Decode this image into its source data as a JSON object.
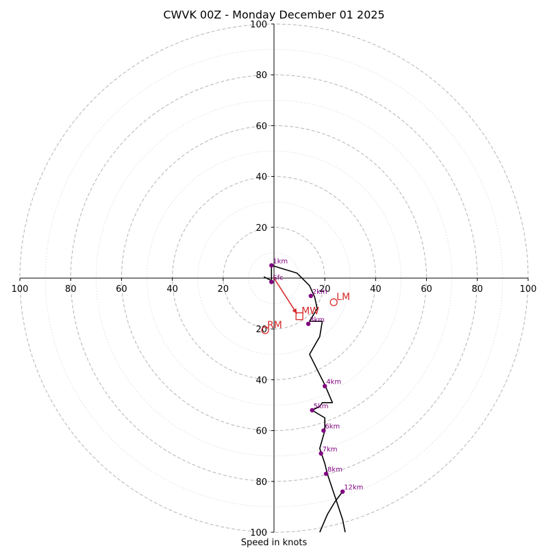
{
  "chart_data": {
    "type": "hodograph",
    "title": "CWVK 00Z - Monday December 01 2025",
    "xlabel": "Speed in knots",
    "units": "knots",
    "range": [
      -100,
      100
    ],
    "major_rings": [
      20,
      40,
      60,
      80,
      100
    ],
    "minor_rings": [
      10,
      30,
      50,
      70,
      90
    ],
    "x_tick_labels": [
      "100",
      "80",
      "60",
      "40",
      "20",
      "20",
      "40",
      "60",
      "80",
      "100"
    ],
    "x_tick_values": [
      -100,
      -80,
      -60,
      -40,
      -20,
      20,
      40,
      60,
      80,
      100
    ],
    "y_tick_labels": [
      "100",
      "80",
      "60",
      "40",
      "20",
      "20",
      "40",
      "60",
      "80",
      "100"
    ],
    "y_tick_values": [
      100,
      80,
      60,
      40,
      20,
      -20,
      -40,
      -60,
      -80,
      -100
    ],
    "profile": [
      [
        -4,
        0.5
      ],
      [
        -1,
        -1
      ],
      [
        -1,
        5
      ],
      [
        9,
        2
      ],
      [
        14,
        -3
      ],
      [
        16,
        -7.5
      ],
      [
        17,
        -12
      ],
      [
        14,
        -17
      ],
      [
        19,
        -17
      ],
      [
        18,
        -23
      ],
      [
        14,
        -30
      ],
      [
        20,
        -42
      ],
      [
        23,
        -49
      ],
      [
        19,
        -49
      ],
      [
        18,
        -50.5
      ],
      [
        15,
        -52
      ],
      [
        20,
        -55
      ],
      [
        20,
        -60
      ],
      [
        18,
        -67
      ],
      [
        19,
        -70
      ],
      [
        20,
        -73
      ],
      [
        21,
        -77
      ],
      [
        23,
        -83
      ],
      [
        25,
        -89
      ],
      [
        27,
        -95
      ],
      [
        28,
        -100
      ]
    ],
    "profile_upper": [
      [
        27,
        -84
      ],
      [
        24,
        -88
      ],
      [
        21,
        -93
      ],
      [
        18,
        -100
      ]
    ],
    "height_markers": [
      {
        "label": "Sfc",
        "u": -1,
        "v": -1.5
      },
      {
        "label": "1km",
        "u": -1,
        "v": 5
      },
      {
        "label": "2km",
        "u": 14.5,
        "v": -7
      },
      {
        "label": "3km",
        "u": 13.5,
        "v": -18
      },
      {
        "label": "4km",
        "u": 20,
        "v": -42.5
      },
      {
        "label": "5km",
        "u": 15,
        "v": -52
      },
      {
        "label": "6km",
        "u": 19.5,
        "v": -60
      },
      {
        "label": "7km",
        "u": 18.5,
        "v": -69
      },
      {
        "label": "8km",
        "u": 20.5,
        "v": -77
      },
      {
        "label": "12km",
        "u": 27,
        "v": -84
      }
    ],
    "storm_motion": {
      "MW": {
        "label": "MW",
        "u": 10,
        "v": -15
      },
      "LM": {
        "label": "LM",
        "u": 23.5,
        "v": -9.5
      },
      "RM": {
        "label": "RM",
        "u": -3.5,
        "v": -20.5
      }
    },
    "shear_vector": {
      "from": [
        0,
        0
      ],
      "to": [
        9,
        -14
      ]
    },
    "colors": {
      "profile": "#000000",
      "markers": "#800080",
      "storm": "#d62728",
      "grid": "#b3b3b3",
      "axis": "#000000"
    }
  }
}
